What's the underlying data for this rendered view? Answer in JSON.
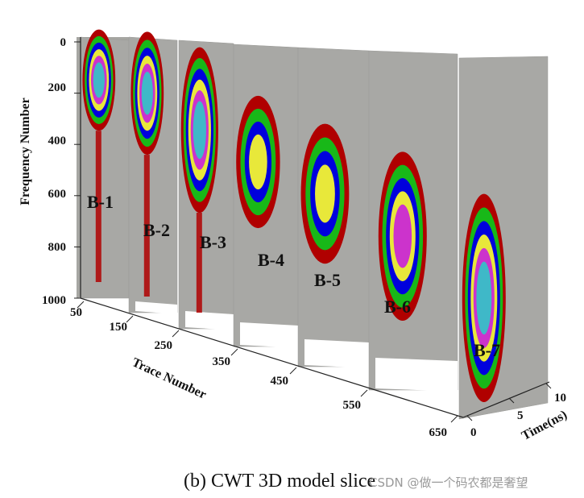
{
  "chart_data": {
    "type": "3d-slices",
    "caption": "(b) CWT 3D model slice",
    "watermark": "CSDN @做一个码农都是奢望",
    "y_axis": {
      "label": "Frequency Number",
      "ticks": [
        "0",
        "200",
        "400",
        "600",
        "800",
        "1000"
      ],
      "range": [
        0,
        1000
      ]
    },
    "x_axis": {
      "label": "Trace Number",
      "ticks": [
        "50",
        "150",
        "250",
        "350",
        "450",
        "550",
        "650"
      ],
      "range": [
        50,
        650
      ]
    },
    "z_axis": {
      "label": "Time(ns)",
      "ticks": [
        "0",
        "5",
        "10"
      ],
      "range": [
        0,
        10
      ]
    },
    "slices": [
      {
        "label": "B-1",
        "center_freq": 170,
        "extent": [
          0,
          400
        ],
        "intensity": 7
      },
      {
        "label": "B-2",
        "center_freq": 210,
        "extent": [
          0,
          460
        ],
        "intensity": 7
      },
      {
        "label": "B-3",
        "center_freq": 320,
        "extent": [
          30,
          620
        ],
        "intensity": 6
      },
      {
        "label": "B-4",
        "center_freq": 400,
        "extent": [
          170,
          620
        ],
        "intensity": 4
      },
      {
        "label": "B-5",
        "center_freq": 470,
        "extent": [
          250,
          700
        ],
        "intensity": 4
      },
      {
        "label": "B-6",
        "center_freq": 560,
        "extent": [
          320,
          830
        ],
        "intensity": 5
      },
      {
        "label": "B-7",
        "center_freq": 680,
        "extent": [
          390,
          980
        ],
        "intensity": 7
      }
    ],
    "colormap": [
      "#b00000",
      "#18b818",
      "#0000dd",
      "#e8e83a",
      "#cc33cc",
      "#3fb8c8"
    ]
  }
}
